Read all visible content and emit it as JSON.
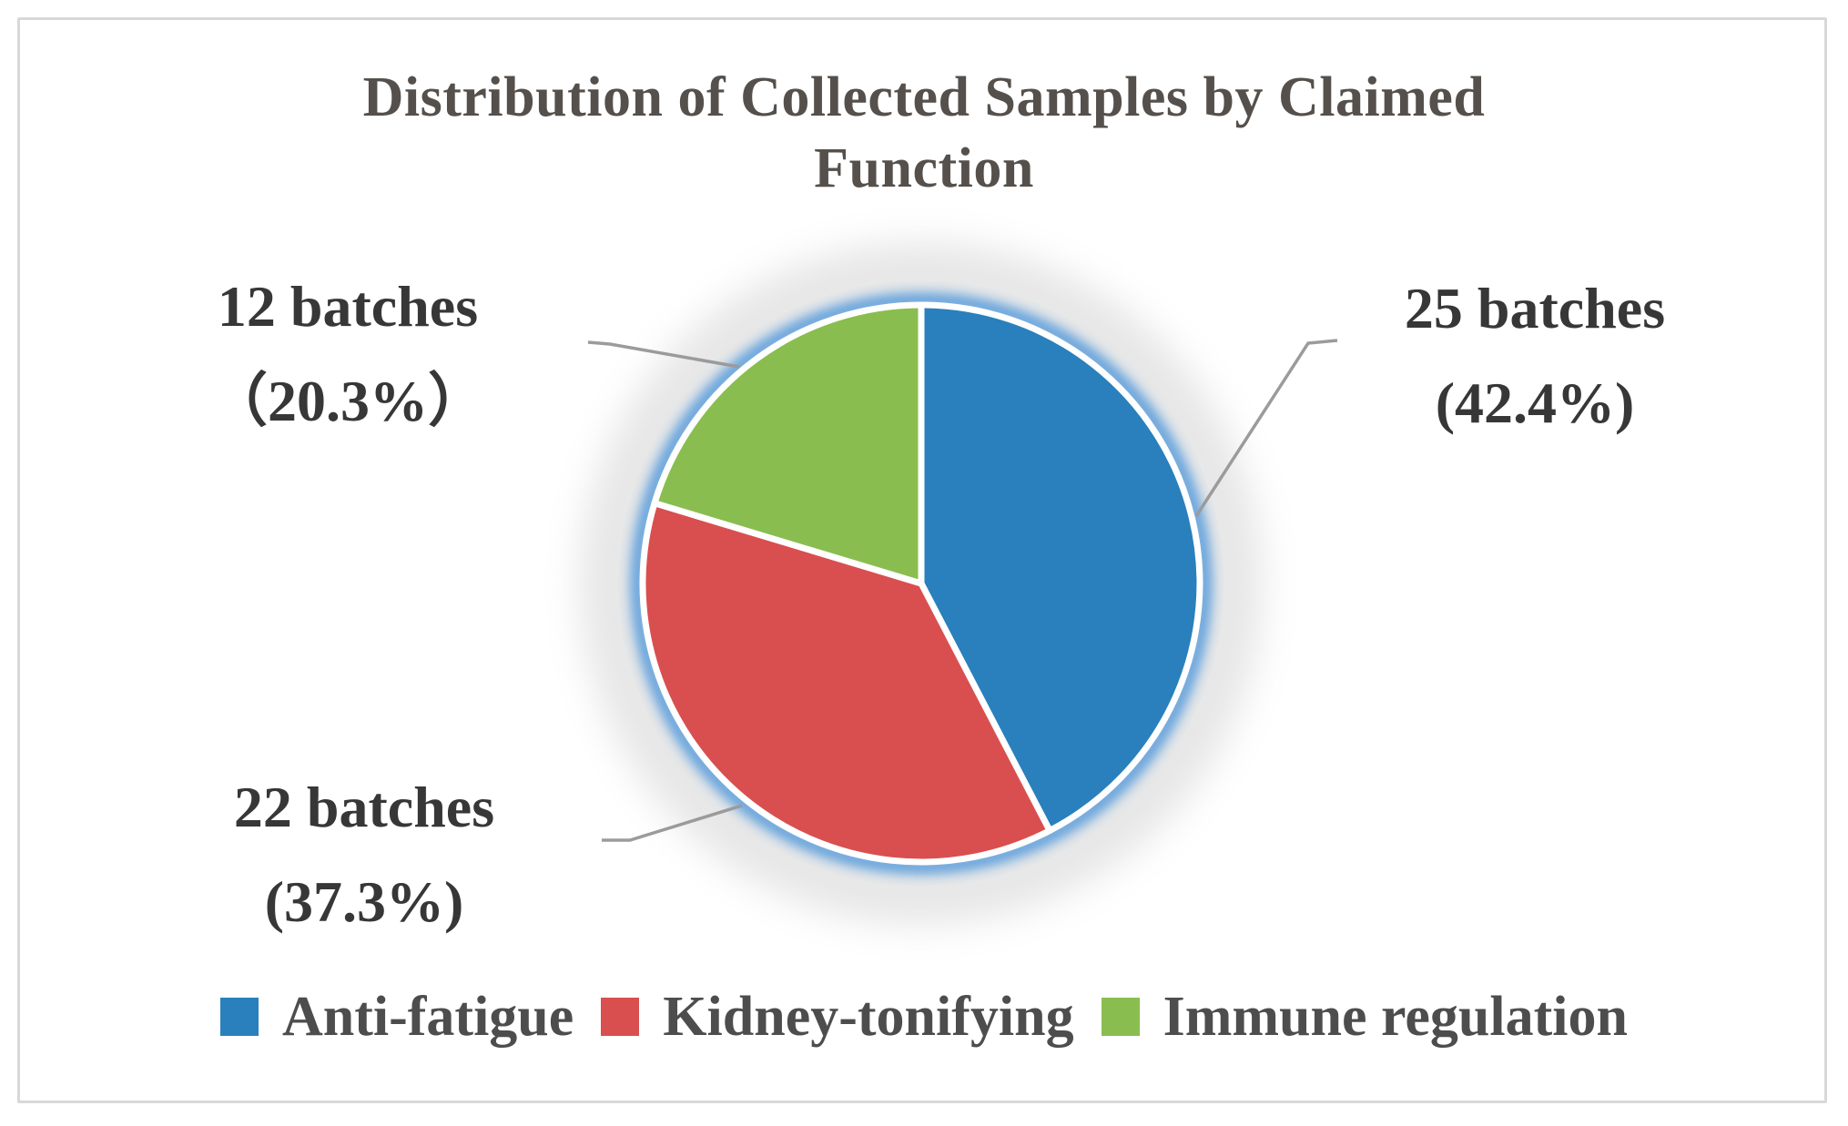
{
  "title": {
    "line1": "Distribution of Collected Samples by Claimed",
    "line2": "Function",
    "full": "Distribution of Collected Samples by Claimed Function"
  },
  "chart_data": {
    "type": "pie",
    "title": "Distribution of Collected Samples by Claimed Function",
    "unit": "batches",
    "categories": [
      "Anti-fatigue",
      "Kidney-tonifying",
      "Immune regulation"
    ],
    "values": [
      25,
      22,
      12
    ],
    "percentages": [
      42.4,
      37.3,
      20.3
    ],
    "colors": [
      "#2980BC",
      "#D94F4F",
      "#8ABD4F"
    ],
    "start_angle_deg": 0,
    "direction": "clockwise",
    "legend_position": "bottom",
    "labels": {
      "anti_fatigue": {
        "line1": "25 batches",
        "line2": "(42.4%)"
      },
      "kidney_tonifying": {
        "line1": "22 batches",
        "line2": "(37.3%)"
      },
      "immune_regulation": {
        "line1": "12 batches",
        "line2": "（20.3%）"
      }
    }
  },
  "legend": {
    "items": [
      {
        "label": "Anti-fatigue",
        "color": "#2980BC"
      },
      {
        "label": "Kidney-tonifying",
        "color": "#D94F4F"
      },
      {
        "label": "Immune regulation",
        "color": "#8ABD4F"
      }
    ]
  },
  "palette": {
    "glow_blue": "#4E95D9",
    "frame_gray": "#D8D8D8",
    "leader_gray": "#9B9B9B",
    "slice_divider": "#FFFFFF",
    "title_text": "#55504B",
    "label_text": "#373737",
    "legend_text": "#4D4D4D"
  }
}
